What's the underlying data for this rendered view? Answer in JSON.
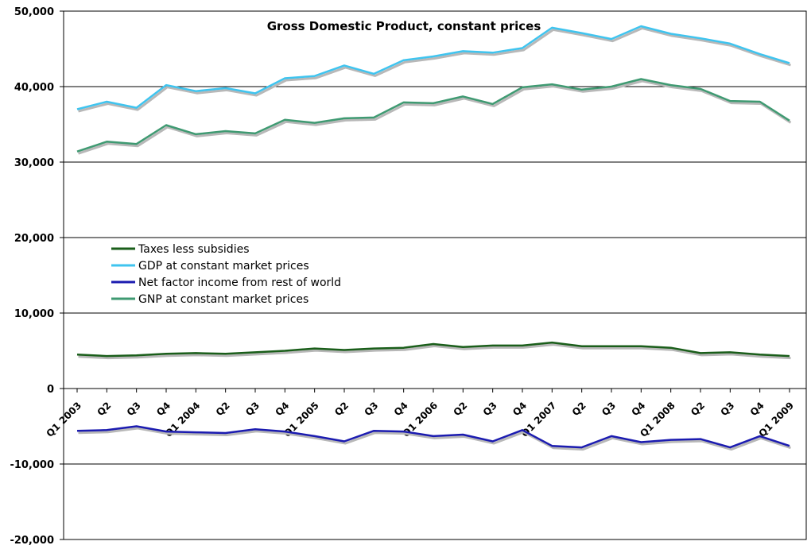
{
  "chart_data": {
    "type": "line",
    "title": "Gross Domestic Product, constant prices",
    "xlabel": "",
    "ylabel": "",
    "ylim": [
      -20000,
      50000
    ],
    "yticks": [
      -20000,
      -10000,
      0,
      10000,
      20000,
      30000,
      40000,
      50000
    ],
    "ytick_labels": [
      "-20,000",
      "-10,000",
      "0",
      "10,000",
      "20,000",
      "30,000",
      "40,000",
      "50,000"
    ],
    "grid": true,
    "legend_position": "center-left",
    "categories": [
      "Q1 2003",
      "Q2",
      "Q3",
      "Q4",
      "Q1 2004",
      "Q2",
      "Q3",
      "Q4",
      "Q1 2005",
      "Q2",
      "Q3",
      "Q4",
      "Q1 2006",
      "Q2",
      "Q3",
      "Q4",
      "Q1 2007",
      "Q2",
      "Q3",
      "Q4",
      "Q1 2008",
      "Q2",
      "Q3",
      "Q4",
      "Q1 2009"
    ],
    "series": [
      {
        "name": "Taxes  less  subsidies",
        "color": "#1a5e1a",
        "values": [
          4500,
          4300,
          4400,
          4600,
          4700,
          4600,
          4800,
          5000,
          5300,
          5100,
          5300,
          5400,
          5900,
          5500,
          5700,
          5700,
          6100,
          5600,
          5600,
          5600,
          5400,
          4700,
          4800,
          4500,
          4300
        ]
      },
      {
        "name": "GDP at  constant  market  prices",
        "color": "#3fc4ef",
        "values": [
          37000,
          38000,
          37200,
          40200,
          39400,
          39800,
          39100,
          41100,
          41400,
          42800,
          41700,
          43500,
          44000,
          44700,
          44500,
          45100,
          47800,
          47100,
          46300,
          48000,
          47000,
          46400,
          45700,
          44300,
          43100
        ]
      },
      {
        "name": "Net factor  income from  rest of  world",
        "color": "#1b1bb0",
        "values": [
          -5600,
          -5500,
          -5000,
          -5700,
          -5800,
          -5900,
          -5400,
          -5700,
          -6300,
          -7000,
          -5600,
          -5700,
          -6300,
          -6100,
          -7000,
          -5500,
          -7600,
          -7800,
          -6300,
          -7100,
          -6800,
          -6700,
          -7800,
          -6300,
          -7600
        ]
      },
      {
        "name": "GNP at  constant  market  prices",
        "color": "#3f9a72",
        "values": [
          31400,
          32700,
          32400,
          34900,
          33700,
          34100,
          33800,
          35600,
          35200,
          35800,
          35900,
          37900,
          37800,
          38700,
          37700,
          39900,
          40300,
          39600,
          40000,
          41000,
          40200,
          39700,
          38100,
          38000,
          35500
        ]
      }
    ]
  }
}
